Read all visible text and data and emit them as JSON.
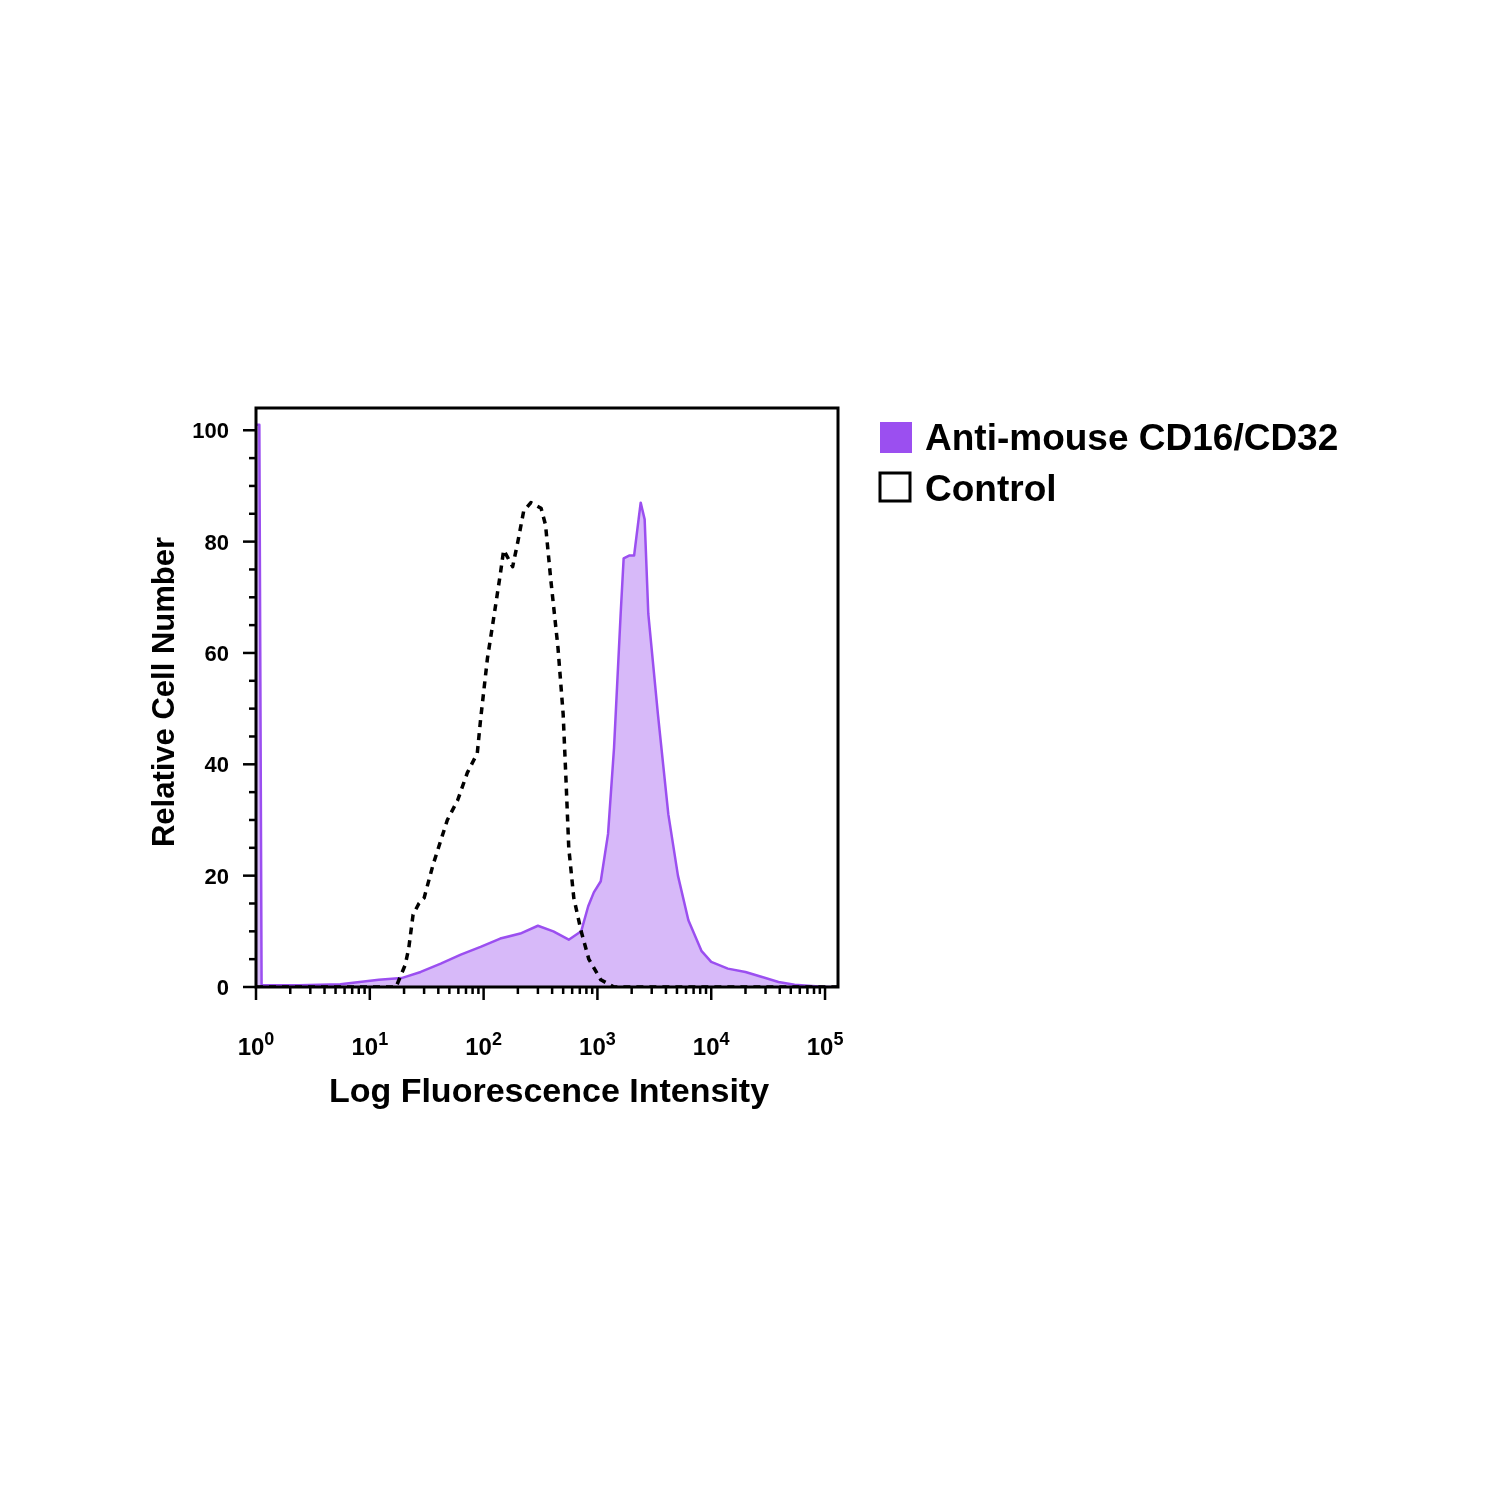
{
  "chart_data": {
    "type": "area",
    "xlabel": "Log Fluorescence Intensity",
    "ylabel": "Relative Cell Number",
    "log": "x",
    "legend": "top right",
    "grid": false,
    "xlim": [
      1,
      130000
    ],
    "ylim": [
      0,
      104
    ],
    "xticks": [
      {
        "value": 1,
        "label": "10$^{0}$"
      },
      {
        "value": 2,
        "label": null
      },
      {
        "value": 3,
        "label": null
      },
      {
        "value": 4,
        "label": null
      },
      {
        "value": 5,
        "label": null
      },
      {
        "value": 6,
        "label": null
      },
      {
        "value": 7,
        "label": null
      },
      {
        "value": 8,
        "label": null
      },
      {
        "value": 9,
        "label": null
      },
      {
        "value": 10,
        "label": "10$^{1}$"
      },
      {
        "value": 20,
        "label": null
      },
      {
        "value": 30,
        "label": null
      },
      {
        "value": 40,
        "label": null
      },
      {
        "value": 50,
        "label": null
      },
      {
        "value": 60,
        "label": null
      },
      {
        "value": 70,
        "label": null
      },
      {
        "value": 80,
        "label": null
      },
      {
        "value": 90,
        "label": null
      },
      {
        "value": 100,
        "label": "10$^{2}$"
      },
      {
        "value": 200,
        "label": null
      },
      {
        "value": 300,
        "label": null
      },
      {
        "value": 400,
        "label": null
      },
      {
        "value": 500,
        "label": null
      },
      {
        "value": 600,
        "label": null
      },
      {
        "value": 700,
        "label": null
      },
      {
        "value": 800,
        "label": null
      },
      {
        "value": 900,
        "label": null
      },
      {
        "value": 1000,
        "label": "10$^{3}$"
      },
      {
        "value": 2000,
        "label": null
      },
      {
        "value": 3000,
        "label": null
      },
      {
        "value": 4000,
        "label": null
      },
      {
        "value": 5000,
        "label": null
      },
      {
        "value": 6000,
        "label": null
      },
      {
        "value": 7000,
        "label": null
      },
      {
        "value": 8000,
        "label": null
      },
      {
        "value": 9000,
        "label": null
      },
      {
        "value": 10000,
        "label": "10$^{4}$"
      },
      {
        "value": 20000,
        "label": null
      },
      {
        "value": 30000,
        "label": null
      },
      {
        "value": 40000,
        "label": null
      },
      {
        "value": 50000,
        "label": null
      },
      {
        "value": 60000,
        "label": null
      },
      {
        "value": 70000,
        "label": null
      },
      {
        "value": 80000,
        "label": null
      },
      {
        "value": 90000,
        "label": null
      },
      {
        "value": 100000,
        "label": "10$^{5}$"
      }
    ],
    "yticks": [
      0,
      {
        "value": 5,
        "label": null
      },
      {
        "value": 10,
        "label": null
      },
      {
        "value": 15,
        "label": null
      },
      20,
      {
        "value": 25,
        "label": null
      },
      {
        "value": 30,
        "label": null
      },
      {
        "value": 35,
        "label": null
      },
      40,
      {
        "value": 45,
        "label": null
      },
      {
        "value": 50,
        "label": null
      },
      {
        "value": 55,
        "label": null
      },
      60,
      {
        "value": 65,
        "label": null
      },
      {
        "value": 70,
        "label": null
      },
      {
        "value": 75,
        "label": null
      },
      80,
      {
        "value": 85,
        "label": null
      },
      {
        "value": 90,
        "label": null
      },
      {
        "value": 95,
        "label": null
      },
      100
    ],
    "series": [
      {
        "name": "Anti-mouse CD16/CD32",
        "color": "#9b4ff0",
        "x": [
          1,
          1.07,
          1.12,
          2.4,
          5.5,
          12,
          19,
          28,
          42,
          63,
          94,
          140,
          210,
          300,
          410,
          560,
          720,
          830,
          930,
          1070,
          1240,
          1400,
          1600,
          1700,
          1900,
          2100,
          2300,
          2400,
          2600,
          2800,
          3400,
          4200,
          5100,
          6300,
          8200,
          10000,
          14000,
          20000,
          28000,
          39000,
          54000,
          76000,
          107000,
          129000
        ],
        "values": [
          101,
          101,
          0.3,
          0.3,
          0.5,
          1.3,
          1.6,
          2.7,
          4.2,
          5.8,
          7.2,
          8.7,
          9.6,
          11,
          10,
          8.5,
          10,
          14.5,
          17,
          19,
          27.5,
          43,
          67,
          77,
          77.5,
          77.5,
          84,
          87,
          84,
          67,
          49,
          31,
          20,
          12,
          6.5,
          4.5,
          3.3,
          2.7,
          1.8,
          0.9,
          0.4,
          0.2,
          0,
          0
        ]
      },
      {
        "name": "Control",
        "type": "line",
        "color": "#000000",
        "line_style": "dashed",
        "x": [
          1,
          17,
          20.5,
          22,
          24,
          27,
          30,
          36,
          48,
          59,
          72,
          88,
          94,
          108,
          122,
          141,
          150,
          180,
          200,
          225,
          260,
          320,
          350,
          390,
          450,
          500,
          530,
          560,
          620,
          720,
          840,
          1070,
          1400,
          129000
        ],
        "values": [
          0,
          0,
          4,
          7,
          13,
          15,
          16,
          22,
          30,
          33.5,
          38.5,
          42,
          48,
          59,
          66,
          74.5,
          78.5,
          75.5,
          80,
          85.5,
          87,
          86,
          83,
          73,
          61,
          49,
          37,
          25,
          16,
          10,
          5,
          1.3,
          0,
          0
        ]
      }
    ]
  }
}
